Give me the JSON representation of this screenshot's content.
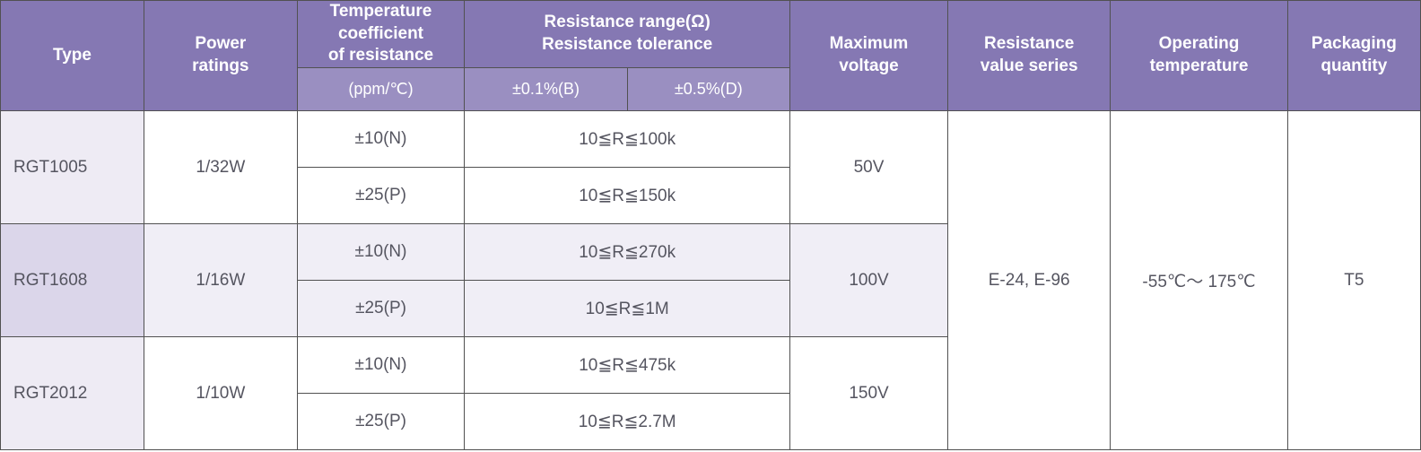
{
  "colors": {
    "header_bg": "#8578b3",
    "header_sub_bg": "#9a8fc1",
    "border": "#515151",
    "row_white": "#ffffff",
    "row_tint": "#f0eef6",
    "type_tint": "#dbd6ea",
    "type_white": "#eeebf4",
    "text": "#555560",
    "header_text": "#ffffff"
  },
  "fonts": {
    "family": "Arial",
    "header_size_pt": 14,
    "cell_size_pt": 14
  },
  "table": {
    "type": "table",
    "columns": {
      "type": "Type",
      "power": "Power\nratings",
      "tcr_top": "Temperature\ncoefficient\nof resistance",
      "tcr_sub": "(ppm/℃)",
      "rr_top": "Resistance range(Ω)\nResistance tolerance",
      "rr_sub1": "±0.1%(B)",
      "rr_sub2": "±0.5%(D)",
      "maxv": "Maximum\nvoltage",
      "series": "Resistance\nvalue series",
      "optemp": "Operating\ntemperature",
      "pack": "Packaging\nquantity"
    },
    "shared": {
      "series": "E-24, E-96",
      "optemp": "-55℃～ 175℃",
      "pack": "T5"
    },
    "rows": [
      {
        "type": "RGT1005",
        "power": "1/32W",
        "maxv": "50V",
        "bg": "white",
        "sub": [
          {
            "tcr": "±10(N)",
            "rr": "10≦R≦100k"
          },
          {
            "tcr": "±25(P)",
            "rr": "10≦R≦150k"
          }
        ]
      },
      {
        "type": "RGT1608",
        "power": "1/16W",
        "maxv": "100V",
        "bg": "tint",
        "sub": [
          {
            "tcr": "±10(N)",
            "rr": "10≦R≦270k"
          },
          {
            "tcr": "±25(P)",
            "rr": "10≦R≦1M"
          }
        ]
      },
      {
        "type": "RGT2012",
        "power": "1/10W",
        "maxv": "150V",
        "bg": "white",
        "sub": [
          {
            "tcr": "±10(N)",
            "rr": "10≦R≦475k"
          },
          {
            "tcr": "±25(P)",
            "rr": "10≦R≦2.7M"
          }
        ]
      }
    ]
  }
}
